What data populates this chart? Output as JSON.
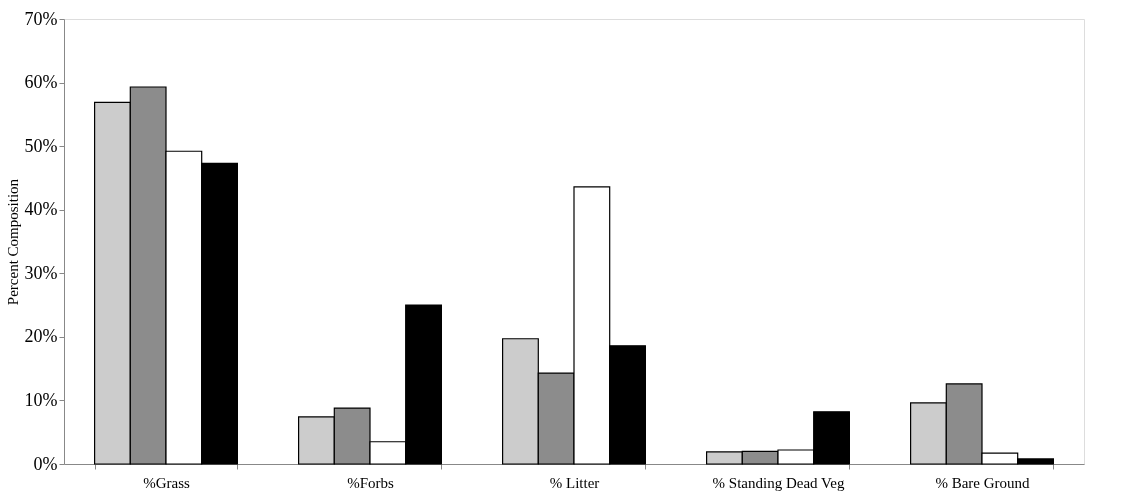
{
  "chart_data": {
    "type": "bar",
    "ylabel": "Percent Composition",
    "categories": [
      "%Grass",
      "%Forbs",
      "% Litter",
      "% Standing Dead Veg",
      "% Bare Ground"
    ],
    "series": [
      {
        "color": "#cccccc",
        "values": [
          56.9,
          7.4,
          19.7,
          1.9,
          9.6
        ]
      },
      {
        "color": "#8c8c8c",
        "values": [
          59.3,
          8.8,
          14.3,
          2.0,
          12.6
        ]
      },
      {
        "color": "#ffffff",
        "values": [
          49.2,
          3.5,
          43.6,
          2.2,
          1.7
        ]
      },
      {
        "color": "#000000",
        "values": [
          47.3,
          25.0,
          18.6,
          8.2,
          0.8
        ]
      }
    ],
    "ylim": [
      0,
      70
    ],
    "yticks": [
      {
        "value": 0,
        "label": "0%"
      },
      {
        "value": 10,
        "label": "10%"
      },
      {
        "value": 20,
        "label": "20%"
      },
      {
        "value": 30,
        "label": "30%"
      },
      {
        "value": 40,
        "label": "40%"
      },
      {
        "value": 50,
        "label": "50%"
      },
      {
        "value": 60,
        "label": "60%"
      },
      {
        "value": 70,
        "label": "70%"
      }
    ],
    "grid": false,
    "legend": false
  }
}
